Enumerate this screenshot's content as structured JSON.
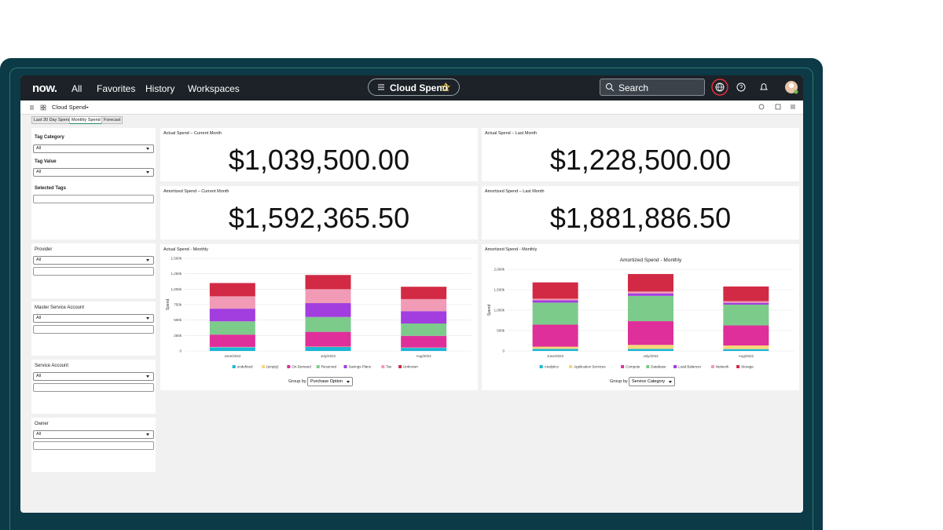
{
  "nav": {
    "logo": "now.",
    "links": [
      "All",
      "Favorites",
      "History",
      "Workspaces"
    ],
    "title": "Cloud Spend",
    "search": "Search"
  },
  "toolbar": {
    "title": "Cloud Spend"
  },
  "tabs": [
    "Last 30 Day Spend",
    "Monthly Spend",
    "Forecast"
  ],
  "filters": [
    {
      "label": "Tag Category",
      "value": "All"
    },
    {
      "label": "Tag Value",
      "value": "All"
    },
    {
      "label": "Selected Tags"
    },
    {
      "label": "Provider",
      "value": "All"
    },
    {
      "label": "Master Service Account",
      "value": "All"
    },
    {
      "label": "Service Account",
      "value": "All"
    },
    {
      "label": "Owner",
      "value": "All"
    }
  ],
  "tiles": [
    {
      "label": "Actual Spend – Current Month",
      "value": "$1,039,500.00"
    },
    {
      "label": "Actual Spend – Last Month",
      "value": "$1,228,500.00"
    },
    {
      "label": "Amortized Spend – Current Month",
      "value": "$1,592,365.50"
    },
    {
      "label": "Amortized Spend – Last Month",
      "value": "$1,881,886.50"
    }
  ],
  "chart_data": [
    {
      "type": "stacked-bar",
      "card_title": "Actual Spend - Monthly",
      "y_label": "Spend",
      "categories": [
        "June/2022",
        "July/2022",
        "Aug/2022"
      ],
      "series": [
        {
          "name": "undefined",
          "color": "#1bb6d6",
          "values": [
            60,
            65,
            50
          ]
        },
        {
          "name": "(empty)",
          "color": "#f6d57a",
          "values": [
            5,
            5,
            5
          ]
        },
        {
          "name": "On-Demand",
          "color": "#df2f9a",
          "values": [
            200,
            240,
            190
          ]
        },
        {
          "name": "Reserved",
          "color": "#7dcb8b",
          "values": [
            215,
            240,
            200
          ]
        },
        {
          "name": "Savings Plans",
          "color": "#a23ddf",
          "values": [
            205,
            225,
            200
          ]
        },
        {
          "name": "Tax",
          "color": "#f19bb6",
          "values": [
            200,
            225,
            195
          ]
        },
        {
          "name": "Unknown",
          "color": "#d22a44",
          "values": [
            215,
            230,
            200
          ]
        }
      ],
      "ylim": [
        0,
        1500
      ],
      "yticks": [
        0,
        {
          "value": 250,
          "label": "250k"
        },
        {
          "value": 500,
          "label": "500k"
        },
        {
          "value": 750,
          "label": "750k"
        },
        {
          "value": 1000,
          "label": "1,000k"
        },
        {
          "value": 1250,
          "label": "1,250k"
        },
        {
          "value": 1500,
          "label": "1,500k"
        }
      ],
      "grid": true,
      "group_by_label": "Group by",
      "group_by": "Purchase Option"
    },
    {
      "type": "stacked-bar",
      "card_title": "Amortized Spend - Monthly",
      "title": "Amortized Spend - Monthly",
      "y_label": "Spend",
      "categories": [
        "June/2022",
        "July/2022",
        "Aug/2022"
      ],
      "series": [
        {
          "name": "Analytics",
          "color": "#1bb6d6",
          "values": [
            50,
            50,
            45
          ]
        },
        {
          "name": "Application Services",
          "color": "#f6d57a",
          "values": [
            55,
            100,
            90
          ]
        },
        {
          "name": "Compute",
          "color": "#df2f9a",
          "values": [
            540,
            580,
            490
          ]
        },
        {
          "name": "Database",
          "color": "#7dcb8b",
          "values": [
            540,
            620,
            510
          ]
        },
        {
          "name": "Load Balancer",
          "color": "#a23ddf",
          "values": [
            55,
            60,
            45
          ]
        },
        {
          "name": "Network",
          "color": "#f19bb6",
          "values": [
            40,
            45,
            40
          ]
        },
        {
          "name": "Storage",
          "color": "#d22a44",
          "values": [
            400,
            430,
            360
          ]
        }
      ],
      "ylim": [
        0,
        2000
      ],
      "yticks": [
        0,
        {
          "value": 500,
          "label": "500k"
        },
        {
          "value": 1000,
          "label": "1,000k"
        },
        {
          "value": 1500,
          "label": "1,500k"
        },
        {
          "value": 2000,
          "label": "2,000k"
        }
      ],
      "grid": true,
      "group_by_label": "Group by",
      "group_by": "Service Category"
    }
  ]
}
